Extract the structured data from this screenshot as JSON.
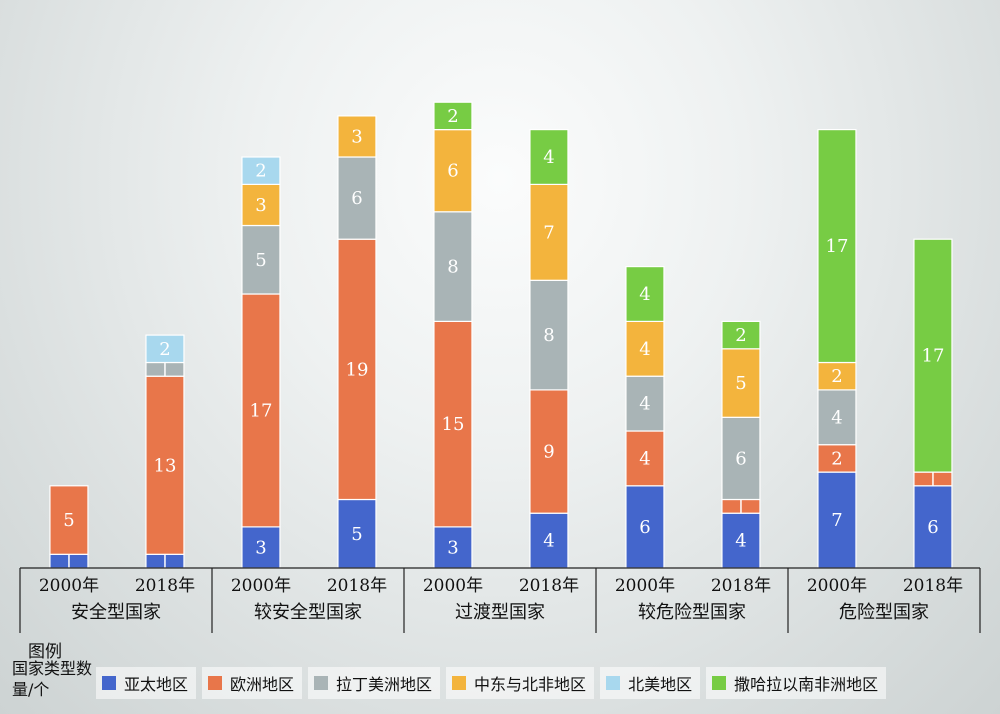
{
  "chart_data": {
    "type": "bar",
    "stacked": true,
    "groups": [
      {
        "label": "安全型国家",
        "years": [
          "2000年",
          "2018年"
        ]
      },
      {
        "label": "较安全型国家",
        "years": [
          "2000年",
          "2018年"
        ]
      },
      {
        "label": "过渡型国家",
        "years": [
          "2000年",
          "2018年"
        ]
      },
      {
        "label": "较危险型国家",
        "years": [
          "2000年",
          "2018年"
        ]
      },
      {
        "label": "危险型国家",
        "years": [
          "2000年",
          "2018年"
        ]
      }
    ],
    "categories": [
      "安全型国家 2000年",
      "安全型国家 2018年",
      "较安全型国家 2000年",
      "较安全型国家 2018年",
      "过渡型国家 2000年",
      "过渡型国家 2018年",
      "较危险型国家 2000年",
      "较危险型国家 2018年",
      "危险型国家 2000年",
      "危险型国家 2018年"
    ],
    "series": [
      {
        "name": "亚太地区",
        "color": "#4466cc",
        "values": [
          1,
          1,
          3,
          5,
          3,
          4,
          6,
          4,
          7,
          6
        ]
      },
      {
        "name": "欧洲地区",
        "color": "#e8764a",
        "values": [
          5,
          13,
          17,
          19,
          15,
          9,
          4,
          1,
          2,
          1
        ]
      },
      {
        "name": "拉丁美洲地区",
        "color": "#a9b4b6",
        "values": [
          0,
          1,
          5,
          6,
          8,
          8,
          4,
          6,
          4,
          0
        ]
      },
      {
        "name": "中东与北非地区",
        "color": "#f3b43d",
        "values": [
          0,
          0,
          3,
          3,
          6,
          7,
          4,
          5,
          2,
          0
        ]
      },
      {
        "name": "北美地区",
        "color": "#a8d8ee",
        "values": [
          0,
          2,
          2,
          0,
          0,
          0,
          0,
          0,
          0,
          0
        ]
      },
      {
        "name": "撒哈拉以南非洲地区",
        "color": "#77cc44",
        "values": [
          0,
          0,
          0,
          0,
          2,
          4,
          4,
          2,
          17,
          17
        ]
      }
    ],
    "unlabeled_values_below": 2,
    "legend": {
      "title": "图例",
      "subtitle": "国家类型数量/个",
      "position": "bottom"
    }
  }
}
